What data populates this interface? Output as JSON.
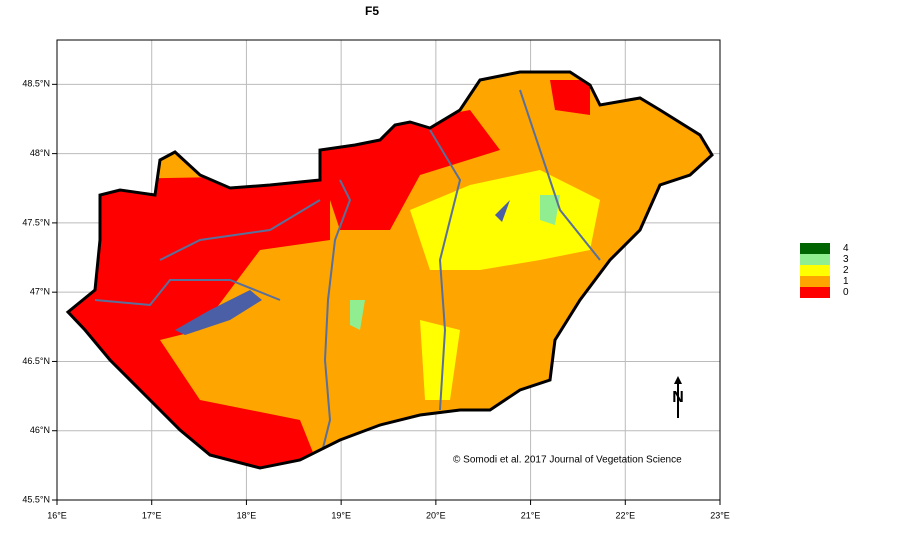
{
  "chart_data": {
    "type": "map",
    "title": "F5",
    "xlim": [
      16,
      23
    ],
    "ylim": [
      45.5,
      48.82
    ],
    "xticks": [
      {
        "value": 16,
        "label": "16°E"
      },
      {
        "value": 17,
        "label": "17°E"
      },
      {
        "value": 18,
        "label": "18°E"
      },
      {
        "value": 19,
        "label": "19°E"
      },
      {
        "value": 20,
        "label": "20°E"
      },
      {
        "value": 21,
        "label": "21°E"
      },
      {
        "value": 22,
        "label": "22°E"
      },
      {
        "value": 23,
        "label": "23°E"
      }
    ],
    "yticks": [
      {
        "value": 45.5,
        "label": "45.5°N"
      },
      {
        "value": 46,
        "label": "46°N"
      },
      {
        "value": 46.5,
        "label": "46.5°N"
      },
      {
        "value": 47,
        "label": "47°N"
      },
      {
        "value": 47.5,
        "label": "47.5°N"
      },
      {
        "value": 48,
        "label": "48°N"
      },
      {
        "value": 48.5,
        "label": "48.5°N"
      }
    ],
    "grid": true,
    "legend": {
      "position": "right",
      "items": [
        {
          "name": "4",
          "color": "#006400"
        },
        {
          "name": "3",
          "color": "#90ee90"
        },
        {
          "name": "2",
          "color": "#ffff00"
        },
        {
          "name": "1",
          "color": "#ffa500"
        },
        {
          "name": "0",
          "color": "#ff0000"
        }
      ]
    },
    "annotation": "© Somodi et al. 2017 Journal of Vegetation Science"
  }
}
